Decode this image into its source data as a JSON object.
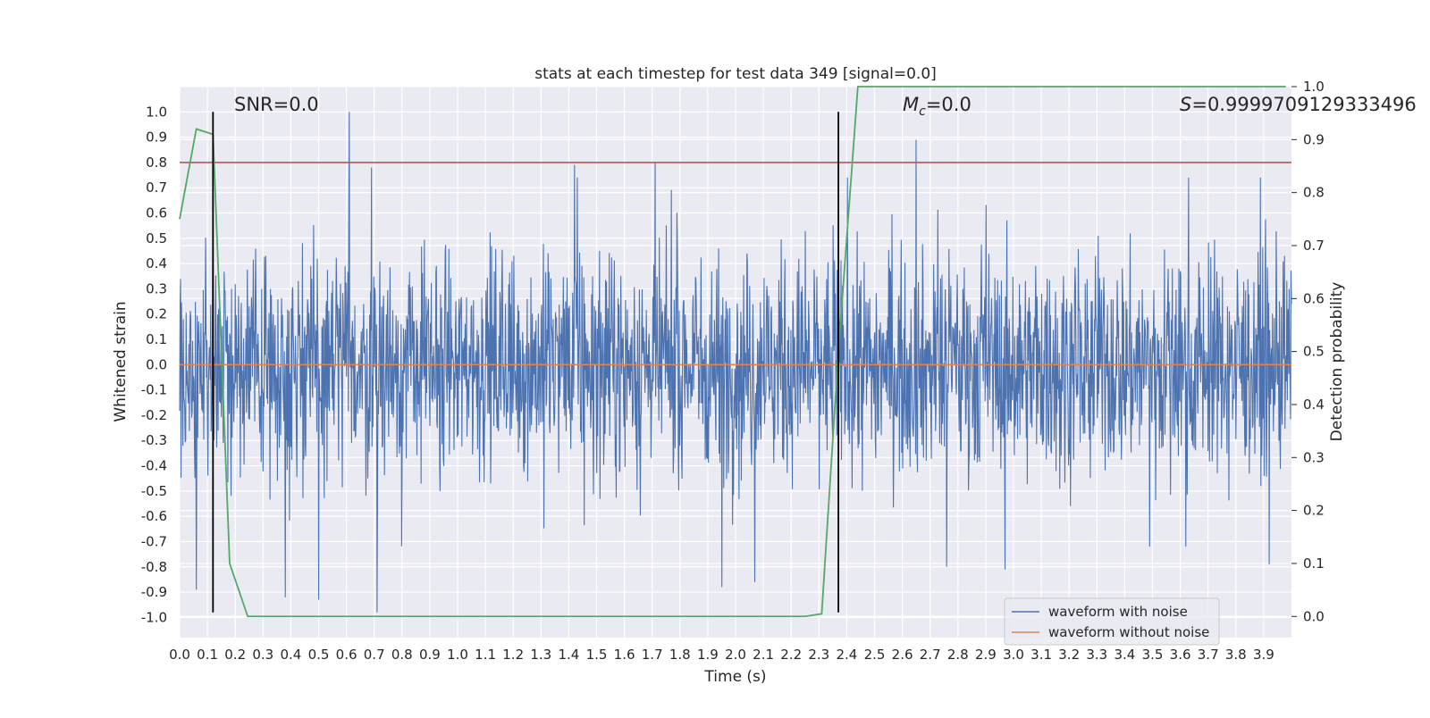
{
  "chart_data": {
    "type": "line",
    "title": "stats at each timestep for test data 349 [signal=0.0]",
    "xlabel": "Time (s)",
    "ylabel": "Whitened strain",
    "ylabel_right": "Detection probability",
    "xlim": [
      0.0,
      4.0
    ],
    "ylim": [
      -1.08,
      1.1
    ],
    "ylim_right": [
      -0.04,
      1.0
    ],
    "x_ticks": [
      "0.0",
      "0.1",
      "0.2",
      "0.3",
      "0.4",
      "0.5",
      "0.6",
      "0.7",
      "0.8",
      "0.9",
      "1.0",
      "1.1",
      "1.2",
      "1.3",
      "1.4",
      "1.5",
      "1.6",
      "1.7",
      "1.8",
      "1.9",
      "2.0",
      "2.1",
      "2.2",
      "2.3",
      "2.4",
      "2.5",
      "2.6",
      "2.7",
      "2.8",
      "2.9",
      "3.0",
      "3.1",
      "3.2",
      "3.3",
      "3.4",
      "3.5",
      "3.6",
      "3.7",
      "3.8",
      "3.9"
    ],
    "y_ticks": [
      "1.0",
      "0.9",
      "0.8",
      "0.7",
      "0.6",
      "0.5",
      "0.4",
      "0.3",
      "0.2",
      "0.1",
      "0.0",
      "-0.1",
      "-0.2",
      "-0.3",
      "-0.4",
      "-0.5",
      "-0.6",
      "-0.7",
      "-0.8",
      "-0.9",
      "-1.0"
    ],
    "y_right_ticks": [
      "1.0",
      "0.9",
      "0.8",
      "0.7",
      "0.6",
      "0.5",
      "0.4",
      "0.3",
      "0.2",
      "0.1",
      "0.0"
    ],
    "grid": true,
    "legend_position": "bottom-right",
    "annotations": {
      "snr": "SNR=0.0",
      "mc_symbol": "M",
      "mc_subscript": "c",
      "mc_value": "=0.0",
      "s_symbol": "S",
      "s_value": "=0.9999709129333496"
    },
    "threshold_line": {
      "value": 0.8,
      "axis": "left",
      "color": "#c44e52"
    },
    "vertical_lines": [
      0.12,
      2.37
    ],
    "series": [
      {
        "name": "waveform with noise",
        "color": "#4c72b0",
        "axis": "left",
        "envelope_note": "dense noise samples, roughly +/-0.4 with spikes to +/-1.0",
        "notable_spikes": [
          {
            "x": 0.06,
            "y": -0.89
          },
          {
            "x": 0.12,
            "y": 0.79
          },
          {
            "x": 0.38,
            "y": -0.92
          },
          {
            "x": 0.5,
            "y": -0.93
          },
          {
            "x": 0.61,
            "y": 1.0
          },
          {
            "x": 0.69,
            "y": 0.78
          },
          {
            "x": 0.71,
            "y": -0.98
          },
          {
            "x": 1.42,
            "y": 0.79
          },
          {
            "x": 1.71,
            "y": 0.8
          },
          {
            "x": 1.95,
            "y": -0.88
          },
          {
            "x": 2.07,
            "y": -0.86
          },
          {
            "x": 2.65,
            "y": 0.89
          },
          {
            "x": 2.76,
            "y": -0.8
          },
          {
            "x": 2.97,
            "y": -0.81
          },
          {
            "x": 3.49,
            "y": -0.72
          },
          {
            "x": 3.62,
            "y": 0.8
          },
          {
            "x": 3.62,
            "y": -0.72
          },
          {
            "x": 3.92,
            "y": -0.79
          }
        ]
      },
      {
        "name": "waveform without noise",
        "color": "#dd8452",
        "axis": "left",
        "x": [
          0.0,
          4.0
        ],
        "y": [
          0.0,
          0.0
        ]
      },
      {
        "name": "",
        "color": "#55a868",
        "axis": "right",
        "x": [
          0.0,
          0.06,
          0.12,
          0.18,
          0.245,
          0.5,
          1.0,
          1.5,
          2.0,
          2.25,
          2.31,
          2.37,
          2.44,
          3.0,
          3.5,
          3.98
        ],
        "y": [
          0.75,
          0.92,
          0.91,
          0.1,
          0.0,
          0.0,
          0.0,
          0.0,
          0.0,
          0.0,
          0.005,
          0.5,
          1.0,
          1.0,
          1.0,
          1.0
        ]
      }
    ]
  }
}
